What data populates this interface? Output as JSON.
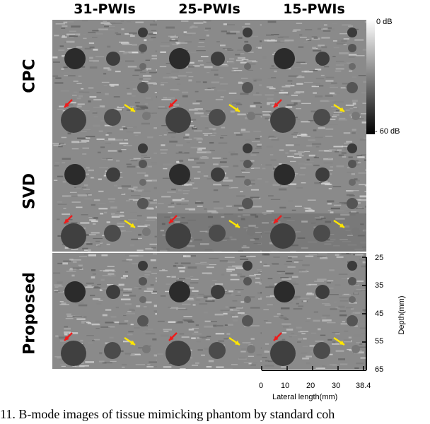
{
  "columns": [
    "31-PWIs",
    "25-PWIs",
    "15-PWIs"
  ],
  "rows": [
    "CPC",
    "SVD",
    "Proposed"
  ],
  "colorbar": {
    "max_label": "0 dB",
    "min_label": "- 60 dB"
  },
  "depth_axis": {
    "label": "Depth(mm)",
    "ticks": [
      "25",
      "35",
      "45",
      "55",
      "65"
    ]
  },
  "lateral_axis": {
    "label": "Lateral length(mm)",
    "ticks": [
      "0",
      "10",
      "20",
      "30",
      "38.4"
    ]
  },
  "caption": "11.  B-mode images of tissue mimicking phantom by standard coh",
  "colors": {
    "arrow_red": "#ee1c1c",
    "arrow_yellow": "#ffe600"
  },
  "panels_note_cells": 9
}
